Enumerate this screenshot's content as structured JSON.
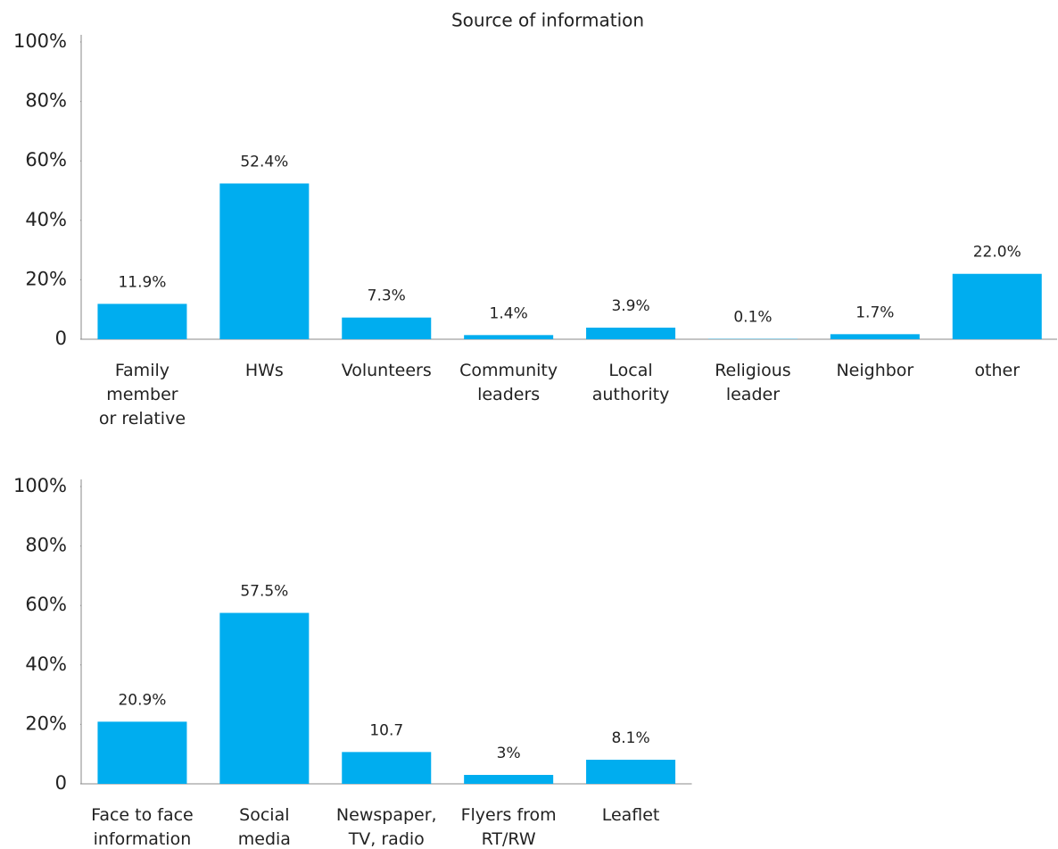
{
  "chart_data": [
    {
      "type": "bar",
      "title": "Source of information",
      "categories": [
        "Family\nmember\nor relative",
        "HWs",
        "Volunteers",
        "Community\nleaders",
        "Local\nauthority",
        "Religious\nleader",
        "Neighbor",
        "other"
      ],
      "values": [
        11.9,
        52.4,
        7.3,
        1.4,
        3.9,
        0.1,
        1.7,
        22.0
      ],
      "value_labels": [
        "11.9%",
        "52.4%",
        "7.3%",
        "1.4%",
        "3.9%",
        "0.1%",
        "1.7%",
        "22.0%"
      ],
      "color": "#00adef",
      "ylim": [
        0,
        100
      ],
      "yticks": [
        0,
        {
          "value": 20,
          "label": "20%"
        },
        {
          "value": 40,
          "label": "40%"
        },
        {
          "value": 60,
          "label": "60%"
        },
        {
          "value": 80,
          "label": "80%"
        },
        {
          "value": 100,
          "label": "100%"
        }
      ]
    },
    {
      "type": "bar",
      "categories": [
        "Face to face\ninformation",
        "Social\nmedia",
        "Newspaper,\nTV, radio",
        "Flyers from\nRT/RW",
        "Leaflet"
      ],
      "values": [
        20.9,
        57.5,
        10.7,
        3,
        8.1
      ],
      "value_labels": [
        "20.9%",
        "57.5%",
        "10.7",
        "3%",
        "8.1%"
      ],
      "color": "#00adef",
      "ylim": [
        0,
        100
      ],
      "yticks": [
        0,
        {
          "value": 20,
          "label": "20%"
        },
        {
          "value": 40,
          "label": "40%"
        },
        {
          "value": 60,
          "label": "60%"
        },
        {
          "value": 80,
          "label": "80%"
        },
        {
          "value": 100,
          "label": "100%"
        }
      ]
    }
  ]
}
